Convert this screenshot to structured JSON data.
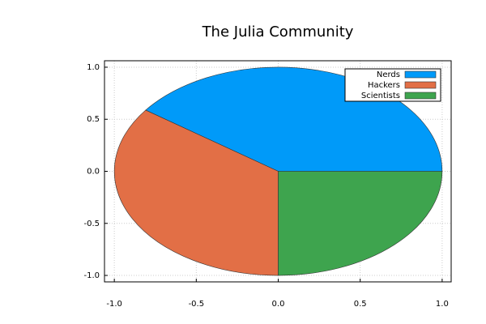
{
  "chart_data": {
    "type": "pie",
    "title": "The Julia Community",
    "categories": [
      "Nerds",
      "Hackers",
      "Scientists"
    ],
    "values": [
      0.4,
      0.35,
      0.25
    ],
    "colors": [
      "#009af9",
      "#e26f46",
      "#3ea44e"
    ],
    "xlim": [
      -1.06,
      1.055
    ],
    "ylim": [
      -1.062,
      1.062
    ],
    "xticks": [
      {
        "value": -1,
        "label": "-1.0"
      },
      {
        "value": -0.5,
        "label": "-0.5"
      },
      {
        "value": 0,
        "label": "0.0"
      },
      {
        "value": 0.5,
        "label": "0.5"
      },
      {
        "value": 1,
        "label": "1.0"
      }
    ],
    "yticks": [
      {
        "value": -1,
        "label": "-1.0"
      },
      {
        "value": -0.5,
        "label": "-0.5"
      },
      {
        "value": 0,
        "label": "0.0"
      },
      {
        "value": 0.5,
        "label": "0.5"
      },
      {
        "value": 1,
        "label": "1.0"
      }
    ],
    "grid": true,
    "legend": "top-right"
  }
}
